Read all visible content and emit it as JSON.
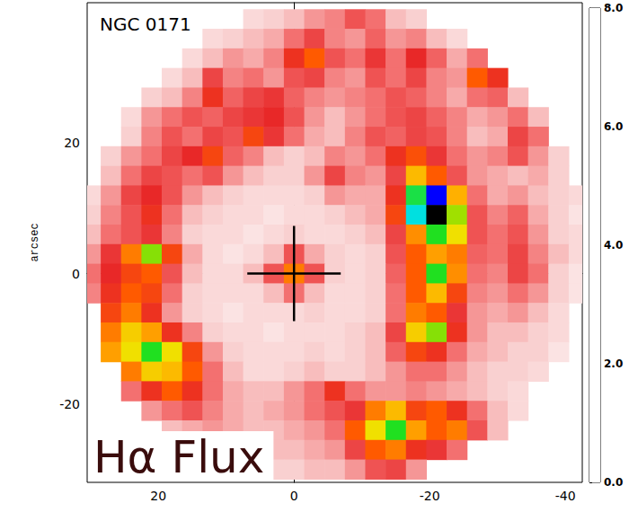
{
  "chart_data": {
    "type": "heatmap",
    "title": "NGC 0171",
    "annotation": "Hα Flux",
    "y_label": "arcsec",
    "xlim": [
      30.5,
      -42.5
    ],
    "xticks": [
      20,
      0,
      -20,
      -40
    ],
    "ylim": [
      -32,
      41.5
    ],
    "yticks": [
      -20,
      0,
      20
    ],
    "center": [
      0,
      0
    ],
    "x": [
      30,
      27,
      24,
      21,
      18,
      15,
      12,
      9,
      6,
      3,
      0,
      -3,
      -6,
      -9,
      -12,
      -15,
      -18,
      -21,
      -24,
      -27,
      -30,
      -33,
      -36,
      -39,
      -42
    ],
    "y": [
      39,
      36,
      33,
      30,
      27,
      24,
      21,
      18,
      15,
      12,
      9,
      6,
      3,
      0,
      -3,
      -6,
      -9,
      -12,
      -15,
      -18,
      -21,
      -24,
      -27,
      -30
    ],
    "z": [
      [
        null,
        null,
        null,
        null,
        null,
        null,
        null,
        null,
        0.4,
        0.5,
        0.6,
        0.8,
        0.9,
        1.2,
        1.0,
        0.6,
        0.5,
        null,
        null,
        null,
        null,
        null,
        null,
        null,
        null
      ],
      [
        null,
        null,
        null,
        null,
        null,
        null,
        0.4,
        0.5,
        0.6,
        0.7,
        1.0,
        1.3,
        0.9,
        0.8,
        1.1,
        0.8,
        0.9,
        0.6,
        0.4,
        null,
        null,
        null,
        null,
        null,
        null
      ],
      [
        null,
        null,
        null,
        null,
        null,
        0.4,
        0.6,
        0.8,
        0.7,
        0.9,
        1.6,
        2.0,
        1.2,
        1.0,
        1.4,
        1.0,
        1.5,
        1.1,
        0.7,
        1.0,
        null,
        null,
        null,
        null,
        null
      ],
      [
        null,
        null,
        null,
        null,
        0.4,
        0.6,
        1.3,
        0.9,
        1.0,
        0.8,
        1.2,
        1.3,
        0.9,
        0.8,
        1.2,
        1.0,
        1.3,
        0.9,
        0.8,
        2.0,
        1.6,
        null,
        null,
        null,
        null
      ],
      [
        null,
        null,
        null,
        0.5,
        0.6,
        0.9,
        1.6,
        1.1,
        1.3,
        1.4,
        1.1,
        0.9,
        0.8,
        0.9,
        1.0,
        1.2,
        1.1,
        0.9,
        0.7,
        1.0,
        1.1,
        0.6,
        null,
        null,
        null
      ],
      [
        null,
        null,
        0.4,
        0.8,
        1.0,
        1.2,
        1.1,
        1.3,
        1.4,
        1.5,
        1.2,
        0.8,
        0.6,
        0.8,
        1.0,
        1.2,
        1.3,
        1.1,
        0.9,
        0.7,
        0.8,
        1.0,
        0.6,
        null,
        null
      ],
      [
        null,
        null,
        0.5,
        0.9,
        1.2,
        1.0,
        1.3,
        1.2,
        1.8,
        1.4,
        1.0,
        0.7,
        0.6,
        0.9,
        1.2,
        1.1,
        1.3,
        1.2,
        0.9,
        0.6,
        0.7,
        1.3,
        1.0,
        null,
        null
      ],
      [
        null,
        0.5,
        0.8,
        1.0,
        1.3,
        1.5,
        1.8,
        1.1,
        0.9,
        0.6,
        0.5,
        0.6,
        0.9,
        0.8,
        1.0,
        1.6,
        1.9,
        1.4,
        1.0,
        0.8,
        0.9,
        1.2,
        0.8,
        0.5,
        null
      ],
      [
        null,
        0.6,
        1.0,
        1.3,
        1.2,
        1.0,
        1.2,
        0.8,
        0.6,
        0.5,
        0.5,
        0.8,
        1.3,
        0.9,
        0.8,
        1.3,
        2.6,
        2.0,
        1.2,
        0.8,
        0.7,
        0.6,
        0.7,
        0.5,
        null
      ],
      [
        0.4,
        0.8,
        1.3,
        1.5,
        1.2,
        0.8,
        0.6,
        0.5,
        0.4,
        0.4,
        0.4,
        0.5,
        0.8,
        0.7,
        0.7,
        1.6,
        4.2,
        6.0,
        2.5,
        1.0,
        0.7,
        0.8,
        0.6,
        0.5,
        0.4
      ],
      [
        0.5,
        0.9,
        1.2,
        1.6,
        1.0,
        0.6,
        0.5,
        0.4,
        0.4,
        0.3,
        0.4,
        0.4,
        0.5,
        0.6,
        0.7,
        1.8,
        5.0,
        8.0,
        3.5,
        1.2,
        0.9,
        1.1,
        0.7,
        0.5,
        0.3
      ],
      [
        0.6,
        1.0,
        1.2,
        1.4,
        0.9,
        0.5,
        0.4,
        0.4,
        0.3,
        0.4,
        0.5,
        0.4,
        0.4,
        0.5,
        0.6,
        1.3,
        2.3,
        4.0,
        3.0,
        1.2,
        1.0,
        1.2,
        0.8,
        0.5,
        0.4
      ],
      [
        0.8,
        1.4,
        2.2,
        3.6,
        1.8,
        0.7,
        0.4,
        0.3,
        0.4,
        0.6,
        1.2,
        0.7,
        0.5,
        0.4,
        0.5,
        1.2,
        2.0,
        2.4,
        2.2,
        1.1,
        1.0,
        1.3,
        0.9,
        0.6,
        0.4
      ],
      [
        1.0,
        1.5,
        1.8,
        2.0,
        1.2,
        0.6,
        0.4,
        0.4,
        0.6,
        1.2,
        2.2,
        1.2,
        0.5,
        0.4,
        0.5,
        1.1,
        2.0,
        4.0,
        2.3,
        1.0,
        0.9,
        1.3,
        1.0,
        0.5,
        0.3
      ],
      [
        0.9,
        1.6,
        2.0,
        1.8,
        1.0,
        0.5,
        0.4,
        0.4,
        0.4,
        0.6,
        1.0,
        0.6,
        0.4,
        0.4,
        0.5,
        1.0,
        2.0,
        2.6,
        1.8,
        0.9,
        0.8,
        1.0,
        0.8,
        0.5,
        0.3
      ],
      [
        null,
        1.8,
        2.2,
        1.6,
        0.8,
        0.5,
        0.4,
        0.3,
        0.4,
        0.4,
        0.4,
        0.5,
        0.4,
        0.4,
        0.5,
        1.0,
        2.2,
        2.0,
        1.4,
        0.8,
        0.7,
        0.8,
        0.6,
        0.4,
        null
      ],
      [
        null,
        2.2,
        2.8,
        2.4,
        1.6,
        0.9,
        0.5,
        0.4,
        0.4,
        0.3,
        0.4,
        0.4,
        0.4,
        0.5,
        0.6,
        1.3,
        2.8,
        3.6,
        1.6,
        0.8,
        0.6,
        0.6,
        0.5,
        0.4,
        null
      ],
      [
        null,
        2.4,
        3.0,
        4.0,
        3.0,
        1.8,
        0.8,
        0.5,
        0.4,
        0.4,
        0.4,
        0.5,
        0.4,
        0.5,
        0.6,
        1.1,
        1.8,
        1.6,
        1.0,
        0.7,
        0.6,
        0.5,
        0.5,
        0.3,
        null
      ],
      [
        null,
        null,
        2.2,
        2.8,
        2.6,
        2.0,
        1.0,
        0.6,
        0.4,
        0.4,
        0.5,
        0.6,
        0.5,
        0.5,
        0.6,
        0.8,
        1.0,
        1.0,
        0.8,
        0.6,
        0.5,
        0.5,
        0.4,
        null,
        null
      ],
      [
        null,
        null,
        1.0,
        1.6,
        2.0,
        1.6,
        1.0,
        0.7,
        0.6,
        0.6,
        0.8,
        1.0,
        1.6,
        1.0,
        0.8,
        0.8,
        0.9,
        0.8,
        0.7,
        0.6,
        0.5,
        0.4,
        null,
        null,
        null
      ],
      [
        null,
        null,
        null,
        0.8,
        1.0,
        1.2,
        0.9,
        0.7,
        0.6,
        0.7,
        0.8,
        1.0,
        1.2,
        1.4,
        2.2,
        2.6,
        1.8,
        2.0,
        1.6,
        1.0,
        0.6,
        0.4,
        null,
        null,
        null
      ],
      [
        null,
        null,
        null,
        null,
        0.6,
        0.7,
        0.8,
        0.7,
        0.6,
        0.6,
        0.7,
        0.8,
        1.0,
        2.0,
        3.0,
        4.0,
        2.4,
        2.0,
        2.2,
        1.2,
        0.6,
        null,
        null,
        null,
        null
      ],
      [
        null,
        null,
        null,
        null,
        null,
        null,
        0.5,
        0.5,
        0.6,
        0.6,
        0.6,
        0.7,
        0.8,
        1.3,
        2.0,
        2.2,
        1.6,
        1.4,
        1.0,
        null,
        null,
        null,
        null,
        null,
        null
      ],
      [
        null,
        null,
        null,
        null,
        null,
        null,
        null,
        null,
        0.4,
        0.5,
        0.5,
        0.6,
        0.6,
        0.8,
        1.2,
        1.3,
        0.8,
        null,
        null,
        null,
        null,
        null,
        null,
        null,
        null
      ]
    ],
    "colorbar": {
      "range": [
        0,
        8
      ],
      "ticks": [
        {
          "value": 0,
          "label": "0.0"
        },
        {
          "value": 2,
          "label": "2.0"
        },
        {
          "value": 4,
          "label": "4.0"
        },
        {
          "value": 6,
          "label": "6.0"
        },
        {
          "value": 8,
          "label": "8.0"
        }
      ]
    }
  }
}
